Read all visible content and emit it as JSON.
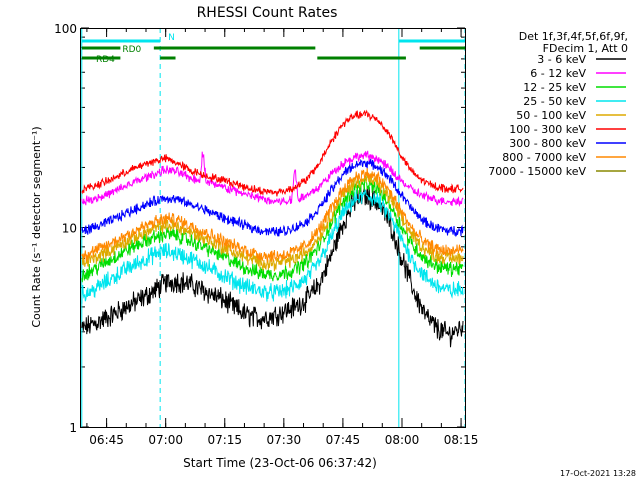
{
  "chart_data": {
    "type": "line",
    "title": "RHESSI Count Rates",
    "xlabel": "Start Time (23-Oct-06 06:37:42)",
    "ylabel": "Count Rate (s⁻¹ detector segment⁻¹)",
    "y_scale": "log",
    "ylim": [
      1,
      100
    ],
    "y_ticks": [
      {
        "value": 1,
        "label": "1"
      },
      {
        "value": 10,
        "label": "10"
      },
      {
        "value": 100,
        "label": "100"
      }
    ],
    "x_ticks": [
      {
        "value": 45,
        "label": "06:45"
      },
      {
        "value": 60,
        "label": "07:00"
      },
      {
        "value": 75,
        "label": "07:15"
      },
      {
        "value": 90,
        "label": "07:30"
      },
      {
        "value": 105,
        "label": "07:45"
      },
      {
        "value": 120,
        "label": "08:00"
      },
      {
        "value": 135,
        "label": "08:15"
      }
    ],
    "x_unit": "minutes after 06:00",
    "xlim": [
      38.5,
      136
    ],
    "legend_header": [
      "Det 1f,3f,4f,5f,6f,9f,",
      "FDecim 1, Att 0"
    ],
    "series": [
      {
        "name": "3 - 6 keV",
        "color": "#000000",
        "x": [
          38.7,
          42,
          46,
          50,
          54,
          57,
          60,
          63,
          66,
          69,
          72,
          75,
          78,
          81,
          84,
          87,
          90,
          93,
          96,
          99,
          102,
          105,
          108,
          111,
          114,
          117,
          120,
          123,
          126,
          129,
          132,
          135.5
        ],
        "y": [
          3.1,
          3.3,
          3.6,
          4.0,
          4.4,
          4.8,
          5.3,
          5.4,
          5.2,
          4.9,
          4.6,
          4.3,
          3.9,
          3.6,
          3.5,
          3.6,
          3.8,
          4.0,
          4.4,
          5.2,
          7.2,
          10.5,
          13.5,
          14.5,
          13.2,
          10.5,
          7.0,
          4.8,
          3.6,
          3.1,
          2.9,
          3.2
        ]
      },
      {
        "name": "6 - 12 keV",
        "color": "#ff00ff",
        "x": [
          38.7,
          42,
          46,
          50,
          54,
          57,
          60,
          63,
          66,
          69,
          72,
          75,
          78,
          81,
          84,
          87,
          90,
          93,
          96,
          99,
          102,
          105,
          108,
          111,
          114,
          117,
          120,
          123,
          126,
          129,
          132,
          135.5
        ],
        "y": [
          13.5,
          14.0,
          14.8,
          16.2,
          17.5,
          18.5,
          19.5,
          19.0,
          17.8,
          17.2,
          16.5,
          15.8,
          15.2,
          14.5,
          14.0,
          13.6,
          13.5,
          13.8,
          14.5,
          16.0,
          18.5,
          21.0,
          22.5,
          23.0,
          22.0,
          19.5,
          17.0,
          15.2,
          14.2,
          13.7,
          13.5,
          13.6
        ]
      },
      {
        "name": "12 - 25 keV",
        "color": "#00dd00",
        "x": [
          38.7,
          42,
          46,
          50,
          54,
          57,
          60,
          63,
          66,
          69,
          72,
          75,
          78,
          81,
          84,
          87,
          90,
          93,
          96,
          99,
          102,
          105,
          108,
          111,
          114,
          117,
          120,
          123,
          126,
          129,
          132,
          135.5
        ],
        "y": [
          5.8,
          6.2,
          6.9,
          7.7,
          8.4,
          8.9,
          9.3,
          9.1,
          8.6,
          8.1,
          7.6,
          7.1,
          6.6,
          6.2,
          5.9,
          5.8,
          5.9,
          6.2,
          6.8,
          8.1,
          10.5,
          13.5,
          15.8,
          16.5,
          15.5,
          13.0,
          10.0,
          8.0,
          6.9,
          6.4,
          6.2,
          6.3
        ]
      },
      {
        "name": "25 - 50 keV",
        "color": "#00e5ee",
        "x": [
          38.7,
          42,
          46,
          50,
          54,
          57,
          60,
          63,
          66,
          69,
          72,
          75,
          78,
          81,
          84,
          87,
          90,
          93,
          96,
          99,
          102,
          105,
          108,
          111,
          114,
          117,
          120,
          123,
          126,
          129,
          132,
          135.5
        ],
        "y": [
          4.6,
          4.9,
          5.5,
          6.2,
          6.8,
          7.3,
          7.6,
          7.4,
          7.0,
          6.6,
          6.1,
          5.7,
          5.3,
          5.0,
          4.8,
          4.7,
          4.8,
          5.1,
          5.6,
          6.7,
          8.9,
          11.8,
          13.8,
          14.5,
          13.6,
          11.3,
          8.6,
          6.7,
          5.6,
          5.1,
          4.8,
          4.9
        ]
      },
      {
        "name": "50 - 100 keV",
        "color": "#ddaa00",
        "x": [
          38.7,
          42,
          46,
          50,
          54,
          57,
          60,
          63,
          66,
          69,
          72,
          75,
          78,
          81,
          84,
          87,
          90,
          93,
          96,
          99,
          102,
          105,
          108,
          111,
          114,
          117,
          120,
          123,
          126,
          129,
          132,
          135.5
        ],
        "y": [
          6.6,
          7.0,
          7.7,
          8.5,
          9.3,
          9.8,
          10.3,
          10.1,
          9.5,
          9.0,
          8.4,
          7.9,
          7.4,
          7.0,
          6.7,
          6.6,
          6.7,
          7.0,
          7.6,
          9.0,
          11.5,
          14.6,
          16.9,
          17.6,
          16.6,
          14.0,
          11.0,
          8.9,
          7.7,
          7.2,
          7.0,
          7.1
        ]
      },
      {
        "name": "100 - 300 keV",
        "color": "#ff0000",
        "x": [
          38.7,
          42,
          46,
          50,
          54,
          57,
          60,
          63,
          66,
          69,
          72,
          75,
          78,
          81,
          84,
          87,
          90,
          93,
          96,
          99,
          102,
          105,
          108,
          111,
          114,
          117,
          120,
          123,
          126,
          129,
          132,
          135.5
        ],
        "y": [
          15.5,
          16.2,
          17.3,
          19.0,
          20.5,
          21.5,
          22.2,
          21.0,
          19.5,
          18.5,
          17.8,
          17.2,
          16.5,
          15.8,
          15.3,
          15.0,
          15.2,
          16.0,
          17.5,
          21.0,
          27.0,
          33.0,
          36.5,
          37.0,
          34.5,
          29.0,
          22.5,
          18.5,
          16.8,
          16.0,
          15.6,
          15.7
        ]
      },
      {
        "name": "300 - 800 keV",
        "color": "#0000ff",
        "x": [
          38.7,
          42,
          46,
          50,
          54,
          57,
          60,
          63,
          66,
          69,
          72,
          75,
          78,
          81,
          84,
          87,
          90,
          93,
          96,
          99,
          102,
          105,
          108,
          111,
          114,
          117,
          120,
          123,
          126,
          129,
          132,
          135.5
        ],
        "y": [
          9.6,
          10.0,
          10.8,
          11.8,
          12.8,
          13.5,
          14.1,
          13.8,
          13.1,
          12.5,
          11.8,
          11.1,
          10.6,
          10.1,
          9.7,
          9.5,
          9.6,
          10.0,
          10.8,
          12.5,
          15.3,
          18.5,
          20.6,
          21.2,
          20.1,
          17.5,
          14.4,
          12.0,
          10.6,
          9.9,
          9.6,
          9.7
        ]
      },
      {
        "name": "800 - 7000 keV",
        "color": "#ff8800",
        "x": [
          38.7,
          42,
          46,
          50,
          54,
          57,
          60,
          63,
          66,
          69,
          72,
          75,
          78,
          81,
          84,
          87,
          90,
          93,
          96,
          99,
          102,
          105,
          108,
          111,
          114,
          117,
          120,
          123,
          126,
          129,
          132,
          135.5
        ],
        "y": [
          7.2,
          7.6,
          8.3,
          9.2,
          10.0,
          10.6,
          11.1,
          10.9,
          10.3,
          9.7,
          9.1,
          8.5,
          8.0,
          7.6,
          7.3,
          7.2,
          7.3,
          7.6,
          8.3,
          9.8,
          12.4,
          15.6,
          17.9,
          18.6,
          17.6,
          15.0,
          11.9,
          9.6,
          8.3,
          7.8,
          7.6,
          7.7
        ]
      },
      {
        "name": "7000 - 15000 keV",
        "color": "#888800",
        "x": [],
        "y": []
      }
    ],
    "spikes": [
      {
        "series": 1,
        "x": 69.5,
        "y": 26.0
      },
      {
        "series": 1,
        "x": 92.8,
        "y": 22.0
      }
    ],
    "markers": {
      "vertical_lines": [
        {
          "x": 38.7,
          "style": "solid",
          "color": "#00e5ee"
        },
        {
          "x": 58.6,
          "style": "dashed",
          "color": "#00e5ee"
        },
        {
          "x": 119.2,
          "style": "solid",
          "color": "#00e5ee"
        },
        {
          "x": 136.0,
          "style": "dashed",
          "color": "#00e5ee"
        }
      ],
      "bars": [
        {
          "label": "N",
          "color": "#00e5ee",
          "y": 91,
          "segments": [
            [
              38.7,
              58.6
            ],
            [
              119.2,
              136.0
            ]
          ]
        },
        {
          "label": "RD0",
          "color": "#008000",
          "y": 80,
          "segments": [
            [
              38.7,
              48.5
            ],
            [
              57.0,
              98.0
            ],
            [
              124.5,
              136.0
            ]
          ]
        },
        {
          "label": "RD4",
          "color": "#008000",
          "y": 71,
          "segments": [
            [
              38.7,
              48.5
            ],
            [
              58.6,
              62.5
            ],
            [
              98.5,
              121.0
            ]
          ]
        }
      ]
    }
  },
  "timestamp": "17-Oct-2021 13:28"
}
